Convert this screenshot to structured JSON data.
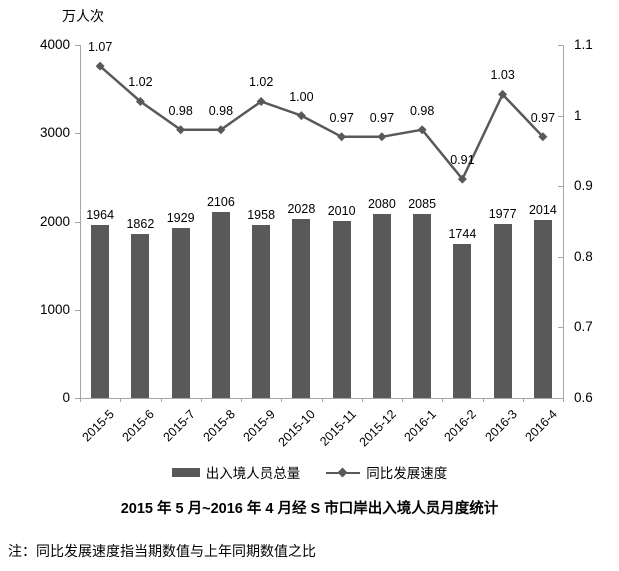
{
  "unit_label": "万人次",
  "title": "2015 年 5 月~2016 年 4 月经 S 市口岸出入境人员月度统计",
  "note": "注：同比发展速度指当期数值与上年同期数值之比",
  "legend": {
    "bar_label": "出入境人员总量",
    "line_label": "同比发展速度"
  },
  "colors": {
    "bar": "#595959",
    "line": "#595959",
    "axis": "#a6a6a6",
    "text": "#000000"
  },
  "chart_data": {
    "type": "bar",
    "subtype": "bar+line dual axis",
    "title": "2015 年 5 月~2016 年 4 月经 S 市口岸出入境人员月度统计",
    "xlabel": "",
    "ylabel": "万人次",
    "grid": false,
    "legend_position": "bottom",
    "categories": [
      "2015-5",
      "2015-6",
      "2015-7",
      "2015-8",
      "2015-9",
      "2015-10",
      "2015-11",
      "2015-12",
      "2016-1",
      "2016-2",
      "2016-3",
      "2016-4"
    ],
    "series": [
      {
        "name": "出入境人员总量",
        "type": "bar",
        "axis": "left",
        "values": [
          1964,
          1862,
          1929,
          2106,
          1958,
          2028,
          2010,
          2080,
          2085,
          1744,
          1977,
          2014
        ]
      },
      {
        "name": "同比发展速度",
        "type": "line",
        "axis": "right",
        "marker": "diamond",
        "values": [
          1.07,
          1.02,
          0.98,
          0.98,
          1.02,
          1.0,
          0.97,
          0.97,
          0.98,
          0.91,
          1.03,
          0.97
        ],
        "labels": [
          "1.07",
          "1.02",
          "0.98",
          "0.98",
          "1.02",
          "1.00",
          "0.97",
          "0.97",
          "0.98",
          "0.91",
          "1.03",
          "0.97"
        ]
      }
    ],
    "left_axis": {
      "min": 0,
      "max": 4000,
      "ticks": [
        "4000",
        "3000",
        "2000",
        "1000",
        "0"
      ]
    },
    "right_axis": {
      "min": 0.6,
      "max": 1.1,
      "ticks": [
        "1.1",
        "1",
        "0.9",
        "0.8",
        "0.7",
        "0.6"
      ]
    }
  }
}
